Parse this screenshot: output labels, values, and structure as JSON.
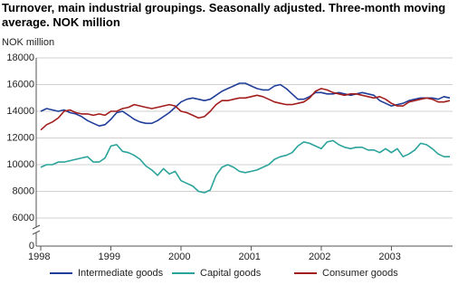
{
  "chart_data": {
    "type": "line",
    "title": "Turnover, main industrial groupings. Seasonally adjusted. Three-month moving average. NOK million",
    "y_label": "NOK million",
    "categories": [
      "1998",
      null,
      null,
      null,
      null,
      null,
      null,
      null,
      null,
      null,
      null,
      null,
      "1999",
      null,
      null,
      null,
      null,
      null,
      null,
      null,
      null,
      null,
      null,
      null,
      "2000",
      null,
      null,
      null,
      null,
      null,
      null,
      null,
      null,
      null,
      null,
      null,
      "2001",
      null,
      null,
      null,
      null,
      null,
      null,
      null,
      null,
      null,
      null,
      null,
      "2002",
      null,
      null,
      null,
      null,
      null,
      null,
      null,
      null,
      null,
      null,
      null,
      "2003",
      null,
      null,
      null,
      null,
      null,
      null,
      null,
      null,
      null,
      null
    ],
    "series": [
      {
        "name": "Intermediate goods",
        "color": "#1f3d99",
        "values": [
          14000,
          14200,
          14100,
          14000,
          14100,
          13900,
          13800,
          13600,
          13300,
          13100,
          12900,
          13000,
          13400,
          13900,
          14000,
          13700,
          13400,
          13200,
          13100,
          13100,
          13300,
          13600,
          13900,
          14300,
          14700,
          14900,
          15000,
          14900,
          14800,
          14900,
          15200,
          15500,
          15700,
          15900,
          16100,
          16100,
          15900,
          15700,
          15600,
          15600,
          15900,
          16000,
          15700,
          15300,
          14900,
          14900,
          15100,
          15400,
          15400,
          15300,
          15300,
          15400,
          15300,
          15200,
          15300,
          15400,
          15300,
          15200,
          14800,
          14600,
          14400,
          14500,
          14600,
          14800,
          14900,
          15000,
          15000,
          15000,
          14900,
          15100,
          15000
        ]
      },
      {
        "name": "Capital goods",
        "color": "#2ba39b",
        "values": [
          9800,
          10000,
          10000,
          10200,
          10200,
          10300,
          10400,
          10500,
          10600,
          10200,
          10200,
          10500,
          11400,
          11500,
          11000,
          10900,
          10700,
          10400,
          9900,
          9600,
          9200,
          9700,
          9300,
          9500,
          8800,
          8600,
          8400,
          8000,
          7900,
          8100,
          9200,
          9800,
          10000,
          9800,
          9500,
          9400,
          9500,
          9600,
          9800,
          10000,
          10400,
          10600,
          10700,
          10900,
          11400,
          11700,
          11600,
          11400,
          11200,
          11700,
          11800,
          11500,
          11300,
          11200,
          11300,
          11300,
          11100,
          11100,
          10900,
          11200,
          10900,
          11200,
          10600,
          10800,
          11100,
          11600,
          11500,
          11200,
          10800,
          10600,
          10600
        ]
      },
      {
        "name": "Consumer goods",
        "color": "#a31d1d",
        "values": [
          12600,
          13000,
          13200,
          13500,
          14000,
          14100,
          13900,
          13800,
          13800,
          13700,
          13800,
          13700,
          14000,
          14000,
          14200,
          14300,
          14500,
          14400,
          14300,
          14200,
          14300,
          14400,
          14500,
          14400,
          14000,
          13900,
          13700,
          13500,
          13600,
          14000,
          14500,
          14800,
          14800,
          14900,
          15000,
          15000,
          15100,
          15200,
          15100,
          14900,
          14700,
          14600,
          14500,
          14500,
          14600,
          14700,
          15000,
          15500,
          15700,
          15600,
          15400,
          15300,
          15200,
          15300,
          15300,
          15200,
          15100,
          15000,
          15100,
          14900,
          14600,
          14400,
          14400,
          14700,
          14800,
          14900,
          15000,
          14900,
          14700,
          14700,
          14800
        ]
      }
    ],
    "ylim": [
      0,
      18000
    ],
    "yticks": [
      0,
      6000,
      8000,
      10000,
      12000,
      14000,
      16000,
      18000
    ],
    "axis_break": true,
    "grid": true,
    "legend": "bottom"
  }
}
